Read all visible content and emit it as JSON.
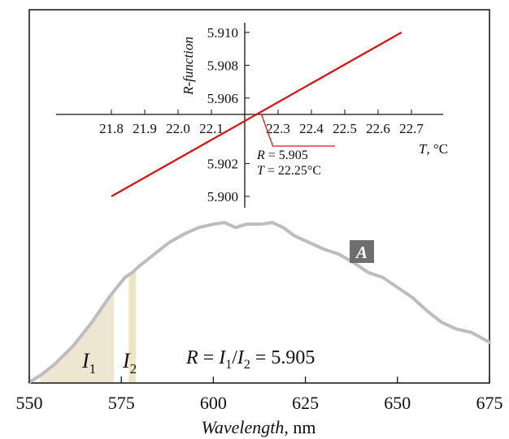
{
  "chart_data": [
    {
      "type": "line",
      "title": "",
      "xlabel": "Wavelength",
      "xlabel_unit": ", nm",
      "xlim": [
        550,
        675
      ],
      "x_ticks": [
        "550",
        "575",
        "600",
        "625",
        "650",
        "675"
      ],
      "series": [
        {
          "name": "A",
          "color": "#bdbdbd",
          "x": [
            550,
            553,
            557,
            562,
            567,
            572,
            576,
            578,
            580,
            584,
            588,
            592,
            596,
            600,
            603,
            606,
            609,
            611,
            613,
            616,
            619,
            622,
            626,
            630,
            634,
            638,
            642,
            646,
            650,
            654,
            658,
            662,
            666,
            670,
            675
          ],
          "y": [
            0.0,
            0.04,
            0.11,
            0.22,
            0.36,
            0.52,
            0.63,
            0.66,
            0.7,
            0.77,
            0.84,
            0.89,
            0.93,
            0.95,
            0.96,
            0.93,
            0.95,
            0.95,
            0.95,
            0.96,
            0.93,
            0.88,
            0.84,
            0.8,
            0.77,
            0.72,
            0.66,
            0.63,
            0.57,
            0.51,
            0.43,
            0.36,
            0.32,
            0.3,
            0.24
          ]
        }
      ],
      "shaded_regions": [
        {
          "label": "I",
          "subscript": "1",
          "x_range": [
            553,
            573
          ],
          "color": "#efe6d2"
        },
        {
          "label": "I",
          "subscript": "2",
          "x_range": [
            577,
            579
          ],
          "color": "#ede6c6"
        }
      ],
      "annotation": {
        "lhs": "R = ",
        "i1": "I",
        "s1": "1",
        "slash": "/",
        "i2": "I",
        "s2": "2",
        "rhs": " = 5.905"
      },
      "curve_label": "A"
    },
    {
      "type": "line",
      "title": "",
      "xlabel": "T",
      "xlabel_unit": ", °C",
      "ylabel": "R-function",
      "xlim": [
        21.75,
        22.75
      ],
      "ylim": [
        5.8995,
        5.9105
      ],
      "x_ticks": [
        "21.8",
        "21.9",
        "22.0",
        "22.1",
        "22.3",
        "22.4",
        "22.5",
        "22.6",
        "22.7"
      ],
      "y_ticks": [
        "5.910",
        "5.908",
        "5.906",
        "5.902",
        "5.900"
      ],
      "series": [
        {
          "name": "",
          "color": "#e01010",
          "x": [
            21.8,
            22.67
          ],
          "y": [
            5.9,
            5.91
          ]
        }
      ],
      "marker": {
        "x": 22.25,
        "y": 5.905
      },
      "marker_label": {
        "r": "R",
        "r_val": " = 5.905",
        "t": "T",
        "t_val": " = 22.25°C"
      }
    }
  ]
}
